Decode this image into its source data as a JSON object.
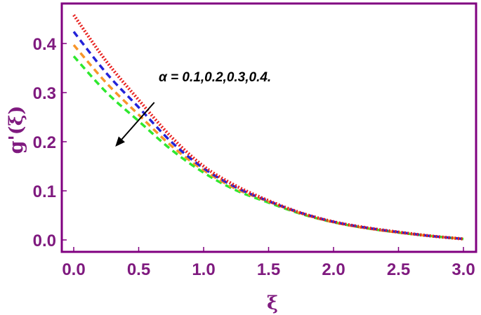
{
  "chart_data": {
    "type": "line",
    "title": "",
    "xlabel": "ξ",
    "ylabel": "g'(ξ)",
    "xlim": [
      0,
      3
    ],
    "ylim": [
      -0.025,
      0.47
    ],
    "x_ticks": [
      0.0,
      0.5,
      1.0,
      1.5,
      2.0,
      2.5,
      3.0
    ],
    "x_tick_labels": [
      "0.0",
      "0.5",
      "1.0",
      "1.5",
      "2.0",
      "2.5",
      "3.0"
    ],
    "y_ticks": [
      0.0,
      0.1,
      0.2,
      0.3,
      0.4
    ],
    "y_tick_labels": [
      "0.0",
      "0.1",
      "0.2",
      "0.3",
      "0.4"
    ],
    "grid": false,
    "annotation": "α = 0.1,0.2,0.3,0.4.",
    "annotation_arrow": {
      "from": [
        0.62,
        0.28
      ],
      "to": [
        0.32,
        0.19
      ]
    },
    "frame_color": "#800080",
    "x": [
      0,
      0.25,
      0.5,
      0.75,
      1.0,
      1.25,
      1.5,
      1.75,
      2.0,
      2.25,
      2.5,
      2.75,
      3.0
    ],
    "series": [
      {
        "values": [
          0.458,
          0.364,
          0.285,
          0.21,
          0.15,
          0.11,
          0.08,
          0.055,
          0.037,
          0.025,
          0.016,
          0.008,
          0.002
        ],
        "color": "#e8211f",
        "dash": "dotted"
      },
      {
        "values": [
          0.424,
          0.34,
          0.27,
          0.2,
          0.146,
          0.107,
          0.079,
          0.055,
          0.037,
          0.025,
          0.016,
          0.008,
          0.002
        ],
        "color": "#2323d8",
        "dash": "dashed"
      },
      {
        "values": [
          0.397,
          0.32,
          0.255,
          0.192,
          0.142,
          0.104,
          0.078,
          0.054,
          0.036,
          0.024,
          0.015,
          0.008,
          0.002
        ],
        "color": "#f7952a",
        "dash": "dashed"
      },
      {
        "values": [
          0.374,
          0.301,
          0.242,
          0.184,
          0.137,
          0.101,
          0.076,
          0.053,
          0.036,
          0.024,
          0.015,
          0.008,
          0.002
        ],
        "color": "#2ee82e",
        "dash": "dashed"
      }
    ]
  }
}
